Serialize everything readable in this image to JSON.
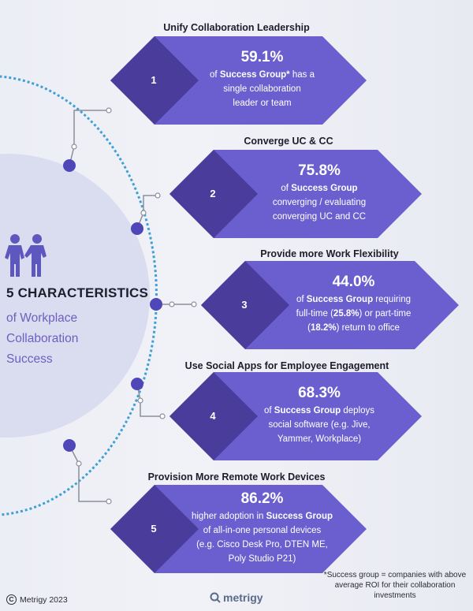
{
  "title": {
    "main": "5 CHARACTERISTICS",
    "sub_lines": [
      "of Workplace",
      "Collaboration",
      "Success"
    ]
  },
  "cards": [
    {
      "heading": "Unify Collaboration Leadership",
      "number": "1",
      "percent": "59.1%",
      "lines": [
        [
          {
            "t": "of "
          },
          {
            "t": "Success Group*",
            "b": true
          },
          {
            "t": " has a"
          }
        ],
        [
          {
            "t": "single collaboration"
          }
        ],
        [
          {
            "t": "leader or team"
          }
        ]
      ]
    },
    {
      "heading": "Converge UC & CC",
      "number": "2",
      "percent": "75.8%",
      "lines": [
        [
          {
            "t": "of "
          },
          {
            "t": "Success Group",
            "b": true
          }
        ],
        [
          {
            "t": "converging / evaluating"
          }
        ],
        [
          {
            "t": "converging UC and CC"
          }
        ]
      ]
    },
    {
      "heading": "Provide more Work Flexibility",
      "number": "3",
      "percent": "44.0%",
      "lines": [
        [
          {
            "t": "of "
          },
          {
            "t": "Success Group",
            "b": true
          },
          {
            "t": " requiring"
          }
        ],
        [
          {
            "t": "full-time ("
          },
          {
            "t": "25.8%",
            "b": true
          },
          {
            "t": ") or part-time"
          }
        ],
        [
          {
            "t": "("
          },
          {
            "t": "18.2%",
            "b": true
          },
          {
            "t": ") return to office"
          }
        ]
      ]
    },
    {
      "heading": "Use Social Apps for Employee Engagement",
      "number": "4",
      "percent": "68.3%",
      "lines": [
        [
          {
            "t": "of "
          },
          {
            "t": "Success Group",
            "b": true
          },
          {
            "t": " deploys"
          }
        ],
        [
          {
            "t": "social software (e.g. Jive,"
          }
        ],
        [
          {
            "t": "Yammer, Workplace)"
          }
        ]
      ]
    },
    {
      "heading": "Provision More Remote Work Devices",
      "number": "5",
      "percent": "86.2%",
      "lines": [
        [
          {
            "t": "higher adoption in "
          },
          {
            "t": "Success Group",
            "b": true
          }
        ],
        [
          {
            "t": "of all-in-one personal devices"
          }
        ],
        [
          {
            "t": "(e.g. Cisco Desk Pro, DTEN ME,"
          }
        ],
        [
          {
            "t": "Poly Studio P21)"
          }
        ]
      ]
    }
  ],
  "footnote": "*Success group = companies with above average ROI for their collaboration investments",
  "copyright": "Metrigy 2023",
  "brand": "metrigy",
  "colors": {
    "hex_light": "#6b5fcf",
    "hex_dark": "#4a3c9a",
    "accent_dot": "#4f47b8",
    "dotted_ring": "#3ea0d6",
    "title_sub": "#6e5fc1"
  }
}
